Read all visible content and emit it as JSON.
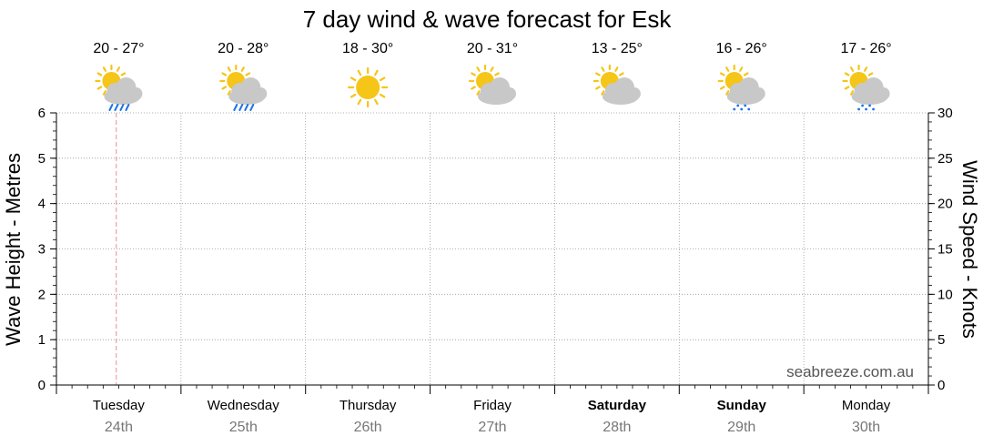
{
  "title": "7 day wind & wave forecast for Esk",
  "watermark": "seabreeze.com.au",
  "chart_data": {
    "type": "line",
    "title": "7 day wind & wave forecast for Esk",
    "ylabel_left": "Wave Height - Metres",
    "ylabel_right": "Wind Speed - Knots",
    "ylim_left": [
      0,
      6
    ],
    "ylim_right": [
      0,
      30
    ],
    "yticks_left": [
      "0",
      "1",
      "2",
      "3",
      "4",
      "5",
      "6"
    ],
    "yticks_right": [
      "0",
      "5",
      "10",
      "15",
      "20",
      "25",
      "30"
    ],
    "grid": true,
    "series": []
  },
  "days": [
    {
      "day": "Tuesday",
      "date": "24th",
      "temp": "20 - 27°",
      "icon": "partly-cloudy-showers-icon",
      "bold": false
    },
    {
      "day": "Wednesday",
      "date": "25th",
      "temp": "20 - 28°",
      "icon": "partly-cloudy-showers-icon",
      "bold": false
    },
    {
      "day": "Thursday",
      "date": "26th",
      "temp": "18 - 30°",
      "icon": "sunny-icon",
      "bold": false
    },
    {
      "day": "Friday",
      "date": "27th",
      "temp": "20 - 31°",
      "icon": "partly-cloudy-icon",
      "bold": false
    },
    {
      "day": "Saturday",
      "date": "28th",
      "temp": "13 - 25°",
      "icon": "partly-cloudy-icon",
      "bold": true
    },
    {
      "day": "Sunday",
      "date": "29th",
      "temp": "16 - 26°",
      "icon": "partly-cloudy-drizzle-icon",
      "bold": true
    },
    {
      "day": "Monday",
      "date": "30th",
      "temp": "17 - 26°",
      "icon": "partly-cloudy-drizzle-icon",
      "bold": false
    }
  ],
  "colors": {
    "grid": "#999999",
    "now_marker": "#f0a0a0",
    "sun": "#f5c518",
    "cloud": "#c8c8c8",
    "rain": "#1a73e8",
    "date_text": "#777777"
  }
}
